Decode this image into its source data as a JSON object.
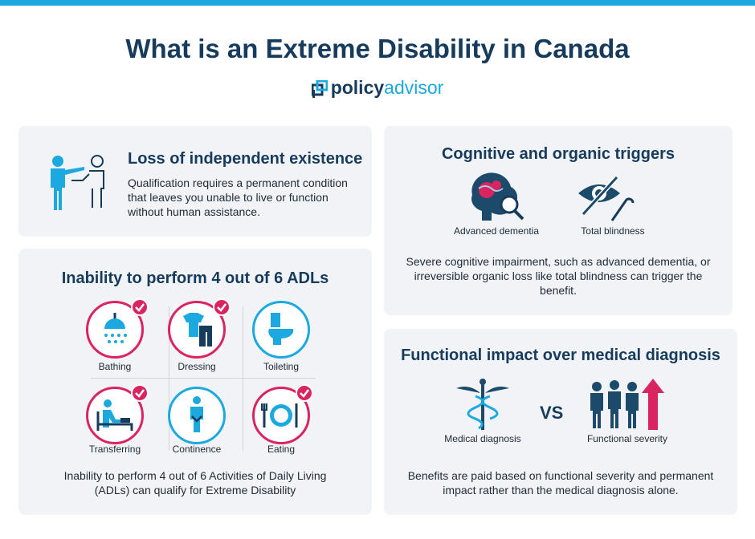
{
  "title": "What is an Extreme Disability in Canada",
  "brand": {
    "part1": "policy",
    "part2": "advisor",
    "icon": "policyadvisor-logo-icon"
  },
  "colors": {
    "navy": "#163b5c",
    "blue": "#1ba9e0",
    "pink": "#d9245f",
    "card": "#f1f3f7"
  },
  "independent": {
    "heading": "Loss of independent existence",
    "text": "Qualification requires a permanent condition that leaves you unable to live or function without human assistance.",
    "icon": "assisted-person-icon"
  },
  "adls": {
    "heading": "Inability to perform 4 out of 6 ADLs",
    "items": [
      {
        "label": "Bathing",
        "icon": "shower-icon",
        "checked": true
      },
      {
        "label": "Dressing",
        "icon": "clothes-icon",
        "checked": true
      },
      {
        "label": "Toileting",
        "icon": "toilet-icon",
        "checked": false
      },
      {
        "label": "Transferring",
        "icon": "bed-transfer-icon",
        "checked": true
      },
      {
        "label": "Continence",
        "icon": "continence-icon",
        "checked": false
      },
      {
        "label": "Eating",
        "icon": "plate-cutlery-icon",
        "checked": true
      }
    ],
    "text": "Inability to perform 4 out of 6 Activities of Daily Living (ADLs) can qualify for Extreme Disability"
  },
  "cognitive": {
    "heading": "Cognitive and organic triggers",
    "items": [
      {
        "label": "Advanced dementia",
        "icon": "brain-magnifier-icon"
      },
      {
        "label": "Total blindness",
        "icon": "crossed-eye-cane-icon"
      }
    ],
    "text": "Severe cognitive impairment, such as advanced dementia, or irreversible organic loss like total blindness can trigger the benefit."
  },
  "functional": {
    "heading": "Functional impact over medical diagnosis",
    "left_label": "Medical diagnosis",
    "vs": "VS",
    "right_label": "Functional severity",
    "left_icon": "caduceus-icon",
    "right_icon": "people-arrow-up-icon",
    "text": "Benefits are paid based on functional severity and permanent impact rather than the medical diagnosis alone."
  }
}
